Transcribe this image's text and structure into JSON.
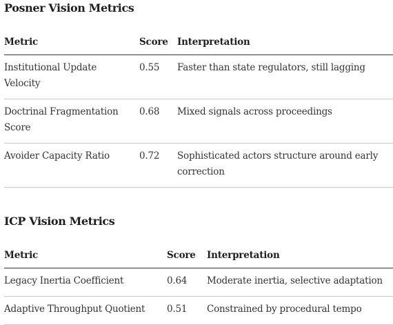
{
  "sections": [
    {
      "title": "Posner Vision Metrics",
      "headers": [
        "Metric",
        "Score",
        "Interpretation"
      ],
      "rows": [
        [
          "Institutional Update Velocity",
          "0.55",
          "Faster than state regulators, still lagging"
        ],
        [
          "Doctrinal Fragmentation Score",
          "0.68",
          "Mixed signals across proceedings"
        ],
        [
          "Avoider Capacity Ratio",
          "0.72",
          "Sophisticated actors structure around early correction"
        ]
      ]
    },
    {
      "title": "ICP Vision Metrics",
      "headers": [
        "Metric",
        "Score",
        "Interpretation"
      ],
      "rows": [
        [
          "Legacy Inertia Coefficient",
          "0.64",
          "Moderate inertia, selective adaptation"
        ],
        [
          "Adaptive Throughput Quotient",
          "0.51",
          "Constrained by procedural tempo"
        ]
      ]
    }
  ]
}
